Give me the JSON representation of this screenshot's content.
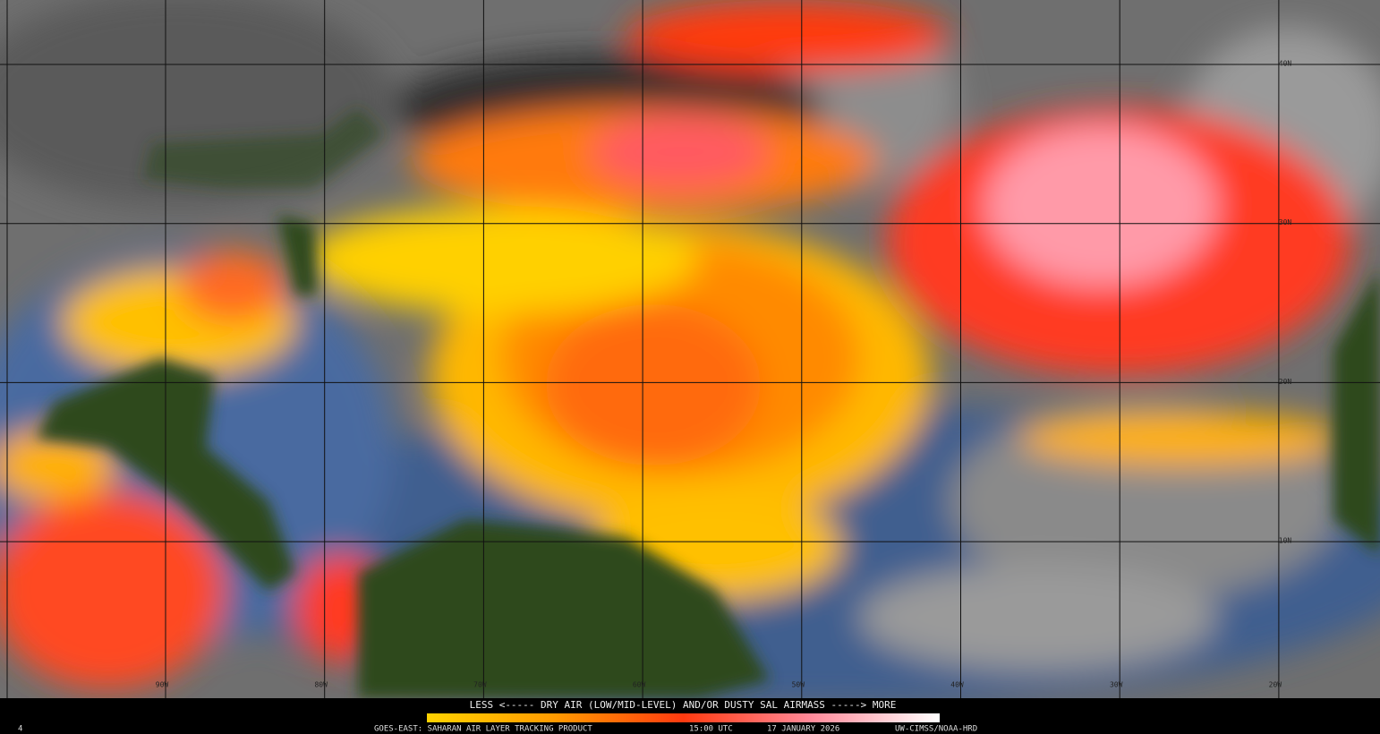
{
  "map": {
    "latitude_labels": [
      "40N",
      "30N",
      "20N",
      "10N"
    ],
    "longitude_labels": [
      "90W",
      "80W",
      "70W",
      "60W",
      "50W",
      "40W",
      "30W",
      "20W"
    ]
  },
  "legend": {
    "caption": "LESS <----- DRY AIR (LOW/MID-LEVEL) AND/OR DUSTY SAL AIRMASS -----> MORE"
  },
  "footer": {
    "frame": "4",
    "product": "GOES-EAST: SAHARAN AIR LAYER TRACKING PRODUCT",
    "time": "15:00 UTC",
    "date": "17 JANUARY 2026",
    "credit": "UW-CIMSS/NOAA-HRD"
  }
}
